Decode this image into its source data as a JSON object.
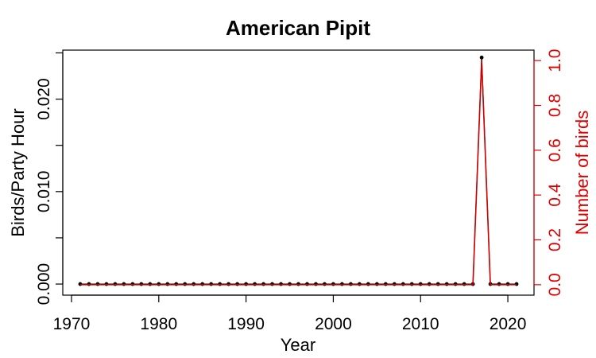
{
  "chart_data": {
    "type": "line",
    "title": "American Pipit",
    "xlabel": "Year",
    "ylabel": "Birds/Party Hour",
    "ylabel_right": "Number of birds",
    "xlim": [
      1969,
      2023
    ],
    "ylim": [
      -0.0012,
      0.0253
    ],
    "ylim_right": [
      -0.0466,
      1.0466
    ],
    "x_ticks": [
      1970,
      1980,
      1990,
      2000,
      2010,
      2020
    ],
    "y_ticks": [
      0.0,
      0.005,
      0.01,
      0.015,
      0.02,
      0.025
    ],
    "y_tick_labels": [
      "0.000",
      "",
      "0.010",
      "",
      "0.020",
      ""
    ],
    "y_ticks_right": [
      0.0,
      0.2,
      0.4,
      0.6,
      0.8,
      1.0
    ],
    "y_tick_labels_right": [
      "0.0",
      "0.2",
      "0.4",
      "0.6",
      "0.8",
      "1.0"
    ],
    "grid": false,
    "colors": {
      "left_series": "#000000",
      "right_series": "#cc0000",
      "right_axis": "#e00000"
    },
    "x": [
      1971,
      1972,
      1973,
      1974,
      1975,
      1976,
      1977,
      1978,
      1979,
      1980,
      1981,
      1982,
      1983,
      1984,
      1985,
      1986,
      1987,
      1988,
      1989,
      1990,
      1991,
      1992,
      1993,
      1994,
      1995,
      1996,
      1997,
      1998,
      1999,
      2000,
      2001,
      2002,
      2003,
      2004,
      2005,
      2006,
      2007,
      2008,
      2009,
      2010,
      2011,
      2012,
      2013,
      2014,
      2015,
      2016,
      2017,
      2018,
      2019,
      2020,
      2021
    ],
    "series": [
      {
        "axis": "left",
        "values": [
          0,
          0,
          0,
          0,
          0,
          0,
          0,
          0,
          0,
          0,
          0,
          0,
          0,
          0,
          0,
          0,
          0,
          0,
          0,
          0,
          0,
          0,
          0,
          0,
          0,
          0,
          0,
          0,
          0,
          0,
          0,
          0,
          0,
          0,
          0,
          0,
          0,
          0,
          0,
          0,
          0,
          0,
          0,
          0,
          0,
          0,
          0.0245,
          0,
          0,
          0,
          0
        ]
      },
      {
        "axis": "right",
        "values": [
          0,
          0,
          0,
          0,
          0,
          0,
          0,
          0,
          0,
          0,
          0,
          0,
          0,
          0,
          0,
          0,
          0,
          0,
          0,
          0,
          0,
          0,
          0,
          0,
          0,
          0,
          0,
          0,
          0,
          0,
          0,
          0,
          0,
          0,
          0,
          0,
          0,
          0,
          0,
          0,
          0,
          0,
          0,
          0,
          0,
          0,
          1,
          0,
          0,
          0,
          0
        ]
      }
    ]
  }
}
